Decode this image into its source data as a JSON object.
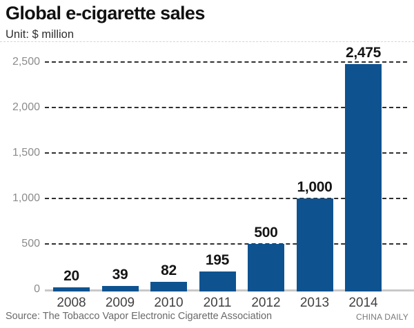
{
  "header": {
    "title": "Global e-cigarette sales",
    "unit_label": "Unit: $ million"
  },
  "footer": {
    "source": "Source: The Tobacco Vapor Electronic Cigarette Association",
    "credit": "CHINA DAILY"
  },
  "chart_data": {
    "type": "bar",
    "title": "Global e-cigarette sales",
    "unit": "$ million",
    "categories": [
      "2008",
      "2009",
      "2010",
      "2011",
      "2012",
      "2013",
      "2014"
    ],
    "values": [
      20,
      39,
      82,
      195,
      500,
      1000,
      2475
    ],
    "value_labels": [
      "20",
      "39",
      "82",
      "195",
      "500",
      "1,000",
      "2,475"
    ],
    "xlabel": "",
    "ylabel": "",
    "ylim": [
      0,
      2500
    ],
    "yticks": [
      0,
      500,
      1000,
      1500,
      2000,
      2500
    ],
    "ytick_labels": [
      "0",
      "500",
      "1,000",
      "1,500",
      "2,000",
      "2,500"
    ],
    "grid": "horizontal-dashed",
    "legend_position": "none"
  },
  "colors": {
    "bar": "#0e5390",
    "gridline": "#2e2e2e",
    "axis_line": "#c8c8c8",
    "title_text": "#111111",
    "ytick_text": "#8b8b8b",
    "xtick_text": "#414141",
    "value_text": "#151515",
    "source_text": "#696969"
  }
}
